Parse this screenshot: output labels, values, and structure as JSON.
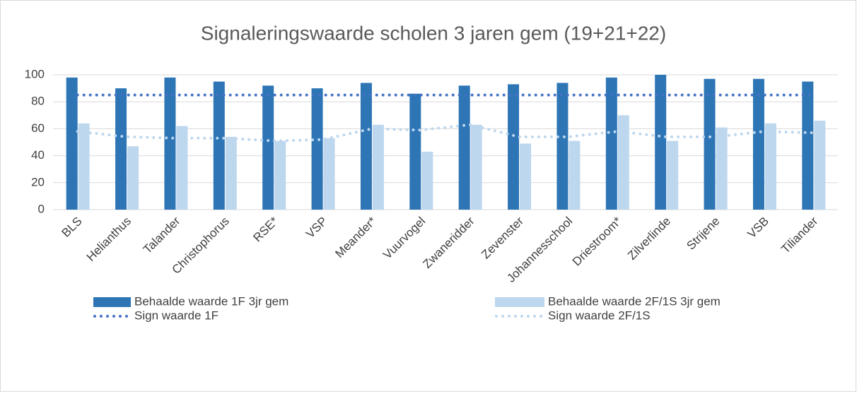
{
  "chart_data": {
    "type": "bar",
    "title": "Signaleringswaarde scholen 3 jaren gem (19+21+22)",
    "categories": [
      "BLS",
      "Helianthus",
      "Talander",
      "Christophorus",
      "RSE*",
      "VSP",
      "Meander*",
      "Vuurvogel",
      "Zwaneridder",
      "Zevenster",
      "Johannesschool",
      "Driestroom*",
      "Zilverlinde",
      "Strijene",
      "VSB",
      "Tiliander"
    ],
    "series": [
      {
        "name": "Behaalde waarde 1F 3jr gem",
        "type": "bar",
        "color": "#2e75b6",
        "values": [
          98,
          90,
          98,
          95,
          92,
          90,
          94,
          86,
          92,
          93,
          94,
          98,
          100,
          97,
          97,
          95
        ]
      },
      {
        "name": "Behaalde waarde 2F/1S 3jr gem",
        "type": "bar",
        "color": "#bdd7ee",
        "values": [
          64,
          47,
          62,
          54,
          51,
          53,
          63,
          43,
          63,
          49,
          51,
          70,
          51,
          61,
          64,
          66
        ]
      },
      {
        "name": "Sign waarde 1F",
        "type": "line",
        "style": "dotted",
        "color": "#4472c4",
        "values": [
          85,
          85,
          85,
          85,
          85,
          85,
          85,
          85,
          85,
          85,
          85,
          85,
          85,
          85,
          85,
          85
        ]
      },
      {
        "name": "Sign waarde 2F/1S",
        "type": "line",
        "style": "dotted",
        "color": "#bdd7ee",
        "values": [
          58,
          54,
          53,
          53,
          51,
          52,
          60,
          59,
          63,
          54,
          54,
          58,
          54,
          54,
          58,
          57
        ]
      }
    ],
    "ylim": [
      0,
      100
    ],
    "yticks": [
      0,
      20,
      40,
      60,
      80,
      100
    ],
    "grid": true,
    "legend": "bottom"
  }
}
